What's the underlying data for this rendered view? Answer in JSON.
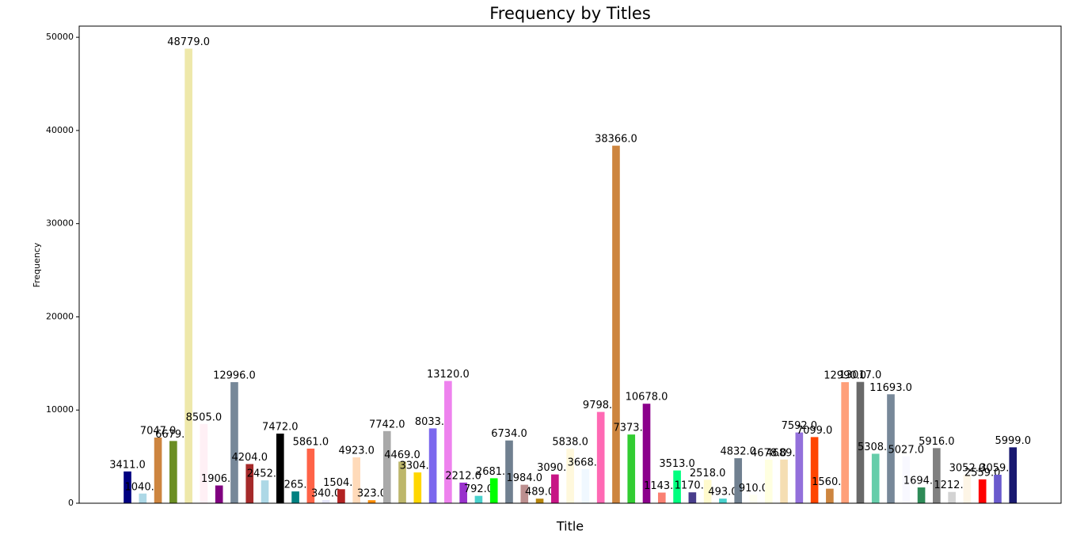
{
  "chart_data": {
    "type": "bar",
    "title": "Frequency by Titles",
    "x_label": "Title",
    "y_label": "Frequency",
    "categories": [
      null,
      null,
      null,
      null,
      null,
      null,
      null,
      null,
      null,
      null,
      null,
      null,
      null,
      null,
      null,
      null,
      null,
      null,
      null,
      null,
      null,
      null,
      null,
      null,
      null,
      null,
      null,
      null,
      null,
      null,
      null,
      null,
      null,
      null,
      null,
      null,
      null,
      null,
      null,
      null,
      null,
      null,
      null,
      null,
      null,
      null,
      null,
      null,
      null,
      null,
      null,
      null,
      null,
      null,
      null,
      null,
      null,
      null,
      null
    ],
    "values": [
      3411,
      1040,
      7047,
      6679,
      48779,
      8505,
      1906,
      12996,
      4204,
      2452,
      7472,
      1265,
      5861,
      340,
      1504,
      4923,
      323,
      7742,
      4469,
      3304,
      8033,
      13120,
      2212,
      792,
      2681,
      6734,
      1984,
      489,
      3090,
      5838,
      3668,
      9798,
      38366,
      7373,
      10678,
      1143,
      3513,
      1170,
      2518,
      493,
      4832,
      910,
      4678,
      4689,
      7592,
      7099,
      1560,
      12990,
      13017,
      5308,
      11693,
      5027,
      1694,
      5916,
      1212,
      3052,
      2559,
      3059,
      5999
    ],
    "value_labels": [
      "3411.0",
      "1040.0",
      "7047.0",
      "6679.0",
      "48779.0",
      "8505.0",
      "1906.0",
      "12996.0",
      "4204.0",
      "2452.0",
      "7472.0",
      "1265.0",
      "5861.0",
      "340.0",
      "1504.0",
      "4923.0",
      "323.0",
      "7742.0",
      "4469.0",
      "3304.0",
      "8033.0",
      "13120.0",
      "2212.0",
      "792.0",
      "2681.0",
      "6734.0",
      "1984.0",
      "489.0",
      "3090.0",
      "5838.0",
      "3668.0",
      "9798.0",
      "38366.0",
      "7373.0",
      "10678.0",
      "1143.0",
      "3513.0",
      "1170.0",
      "2518.0",
      "493.0",
      "4832.0",
      "910.0",
      "4678.0",
      "4689.0",
      "7592.0",
      "7099.0",
      "1560.0",
      "12990.0",
      "13017.0",
      "5308.0",
      "11693.0",
      "5027.0",
      "1694.0",
      "5916.0",
      "1212.0",
      "3052.0",
      "2559.0",
      "3059.0",
      "5999.0"
    ],
    "colors": [
      "#000080",
      "#add8e6",
      "#cd853f",
      "#6b8e23",
      "#eee8aa",
      "#fff0f5",
      "#800080",
      "#778899",
      "#a52a2a",
      "#add8e6",
      "#000000",
      "#008080",
      "#ff6347",
      "#e6e6fa",
      "#b22222",
      "#ffdab9",
      "#ff8c00",
      "#a9a9a9",
      "#bdb76b",
      "#ffd700",
      "#7b68ee",
      "#ee82ee",
      "#9932cc",
      "#48d1cc",
      "#00ff00",
      "#708090",
      "#bc8f8f",
      "#b8860b",
      "#c71585",
      "#fff8dc",
      "#f0f8ff",
      "#ff69b4",
      "#cd853f",
      "#32cd32",
      "#8b008b",
      "#fa8072",
      "#00ff7f",
      "#483d8b",
      "#fffacd",
      "#48d1cc",
      "#708090",
      "#fffff0",
      "#ffffe0",
      "#f5deb3",
      "#9370db",
      "#ff4500",
      "#cd853f",
      "#ffa07a",
      "#696969",
      "#66cdaa",
      "#778899",
      "#f8f8ff",
      "#2e8b57",
      "#808080",
      "#d3d3d3",
      "#fdf5e6",
      "#ff0000",
      "#6a5acd",
      "#191970"
    ],
    "ylim": [
      0,
      51200
    ],
    "yticks": [
      0,
      10000,
      20000,
      30000,
      40000,
      50000
    ],
    "grid": false
  }
}
